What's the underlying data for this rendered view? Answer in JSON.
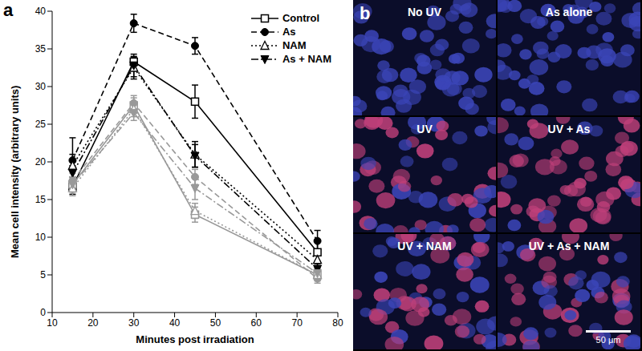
{
  "chart_data": {
    "type": "line",
    "panel_label": "a",
    "x_label": "Minutes post irradiation",
    "y_label": "Mean cell intensity (arbitrary units)",
    "x": [
      15,
      30,
      45,
      75
    ],
    "xlim": [
      10,
      80
    ],
    "xticks": [
      10,
      20,
      30,
      40,
      50,
      60,
      70,
      80
    ],
    "ylim": [
      0,
      40
    ],
    "yticks": [
      0,
      5,
      10,
      15,
      20,
      25,
      30,
      35,
      40
    ],
    "legend": "upper right",
    "series": [
      {
        "name": "Control",
        "color": "#000000",
        "marker": "square",
        "line_style": "solid",
        "values": [
          16.7,
          33.3,
          28,
          8
        ],
        "errors": [
          1,
          0.6,
          2.2,
          1.5
        ]
      },
      {
        "name": "As",
        "color": "#000000",
        "marker": "circle",
        "line_style": "dashed",
        "values": [
          20.2,
          38.4,
          35.4,
          9.5
        ],
        "errors": [
          3,
          1.2,
          1.1,
          1.4
        ]
      },
      {
        "name": "NAM",
        "color": "#000000",
        "marker": "triangle",
        "line_style": "dotted",
        "values": [
          19.5,
          32.5,
          21,
          7
        ],
        "errors": [
          1.5,
          1.5,
          1.7,
          1
        ]
      },
      {
        "name": "As + NAM",
        "color": "#000000",
        "marker": "triangle_down",
        "line_style": "dashdot",
        "values": [
          18.5,
          32.8,
          20.8,
          5.8
        ],
        "errors": [
          1,
          1.5,
          1.5,
          1
        ]
      },
      {
        "color": "#999999",
        "marker": "square",
        "line_style": "solid",
        "values": [
          17,
          27.5,
          13,
          5
        ],
        "errors": [
          1,
          1,
          1,
          0.8
        ]
      },
      {
        "color": "#999999",
        "marker": "circle",
        "line_style": "dashed",
        "values": [
          17.5,
          27.8,
          18,
          4.5
        ],
        "errors": [
          1,
          1,
          1,
          0.6
        ]
      },
      {
        "color": "#999999",
        "marker": "triangle",
        "line_style": "dotted",
        "values": [
          16.5,
          27,
          13.5,
          5
        ],
        "errors": [
          1,
          1,
          1,
          0.6
        ]
      },
      {
        "color": "#999999",
        "marker": "triangle_down",
        "line_style": "dashdot",
        "values": [
          17,
          26.5,
          16.5,
          5.2
        ],
        "errors": [
          1,
          1,
          1.5,
          0.6
        ]
      }
    ]
  },
  "panel_b": {
    "label": "b",
    "images": [
      "No UV",
      "As alone",
      "UV",
      "UV + As",
      "UV + NAM",
      "UV + As + NAM"
    ],
    "scale_bar": "50 μm"
  }
}
